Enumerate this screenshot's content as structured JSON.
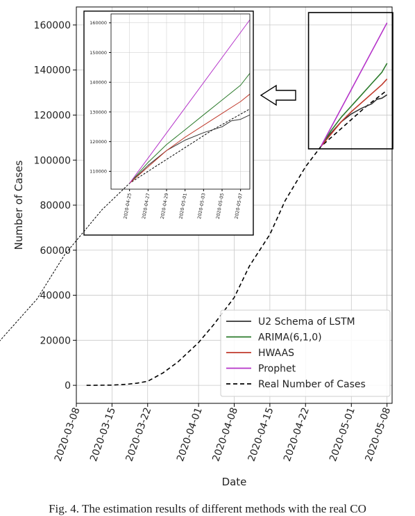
{
  "chart_data": [
    {
      "type": "line",
      "xlabel": "Date",
      "ylabel": "Number of Cases",
      "xticks": [
        "2020-03-08",
        "2020-03-15",
        "2020-03-22",
        "2020-04-01",
        "2020-04-08",
        "2020-04-15",
        "2020-04-22",
        "2020-05-01",
        "2020-05-08"
      ],
      "yticks": [
        "0",
        "20000",
        "40000",
        "60000",
        "80000",
        "100000",
        "120000",
        "140000",
        "160000"
      ],
      "xlim": [
        "2020-03-08",
        "2020-05-09"
      ],
      "ylim": [
        -8000,
        168000
      ],
      "grid": true,
      "legend": "lower-right",
      "series": [
        {
          "name": "Real Number of Cases",
          "color": "#000000",
          "dash": "dashed",
          "x": [
            "2020-03-10",
            "2020-03-15",
            "2020-03-18",
            "2020-03-20",
            "2020-03-22",
            "2020-03-25",
            "2020-03-28",
            "2020-04-01",
            "2020-04-04",
            "2020-04-08",
            "2020-04-11",
            "2020-04-15",
            "2020-04-18",
            "2020-04-22",
            "2020-04-25",
            "2020-04-28",
            "2020-05-01",
            "2020-05-04",
            "2020-05-08"
          ],
          "y": [
            0,
            100,
            500,
            1000,
            1800,
            5500,
            10500,
            19000,
            27000,
            39000,
            53000,
            67000,
            82000,
            97000,
            106000,
            112000,
            118000,
            124000,
            131000
          ]
        },
        {
          "name": "U2 Schema of LSTM",
          "color": "#333333",
          "x": [
            "2020-04-25",
            "2020-04-27",
            "2020-04-29",
            "2020-05-01",
            "2020-05-03",
            "2020-05-05",
            "2020-05-06",
            "2020-05-07",
            "2020-05-08"
          ],
          "y": [
            106000,
            112000,
            117000,
            120500,
            123000,
            125000,
            127000,
            127500,
            129000
          ]
        },
        {
          "name": "ARIMA(6,1,0)",
          "color": "#2a7a2a",
          "x": [
            "2020-04-25",
            "2020-04-27",
            "2020-04-29",
            "2020-05-01",
            "2020-05-03",
            "2020-05-05",
            "2020-05-07",
            "2020-05-08"
          ],
          "y": [
            106000,
            113000,
            119000,
            124000,
            129000,
            134000,
            139000,
            143000
          ]
        },
        {
          "name": "HWAAS",
          "color": "#c0392b",
          "x": [
            "2020-04-25",
            "2020-04-27",
            "2020-04-29",
            "2020-05-01",
            "2020-05-03",
            "2020-05-05",
            "2020-05-07",
            "2020-05-08"
          ],
          "y": [
            106000,
            111500,
            117000,
            121500,
            125500,
            129500,
            133500,
            136000
          ]
        },
        {
          "name": "Prophet",
          "color": "#b533c9",
          "x": [
            "2020-04-25",
            "2020-05-08"
          ],
          "y": [
            106000,
            161000
          ]
        }
      ]
    },
    {
      "type": "line",
      "inset_of": "main",
      "xticks": [
        "2020-04-25",
        "2020-04-27",
        "2020-04-29",
        "2020-05-01",
        "2020-05-03",
        "2020-05-05",
        "2020-05-07"
      ],
      "yticks": [
        "110000",
        "120000",
        "130000",
        "140000",
        "150000",
        "160000"
      ],
      "xlim": [
        "2020-04-23",
        "2020-05-08"
      ],
      "ylim": [
        104000,
        163000
      ],
      "series_ref": "main"
    }
  ],
  "caption": "Fig. 4. The estimation results of different methods with the real CO"
}
